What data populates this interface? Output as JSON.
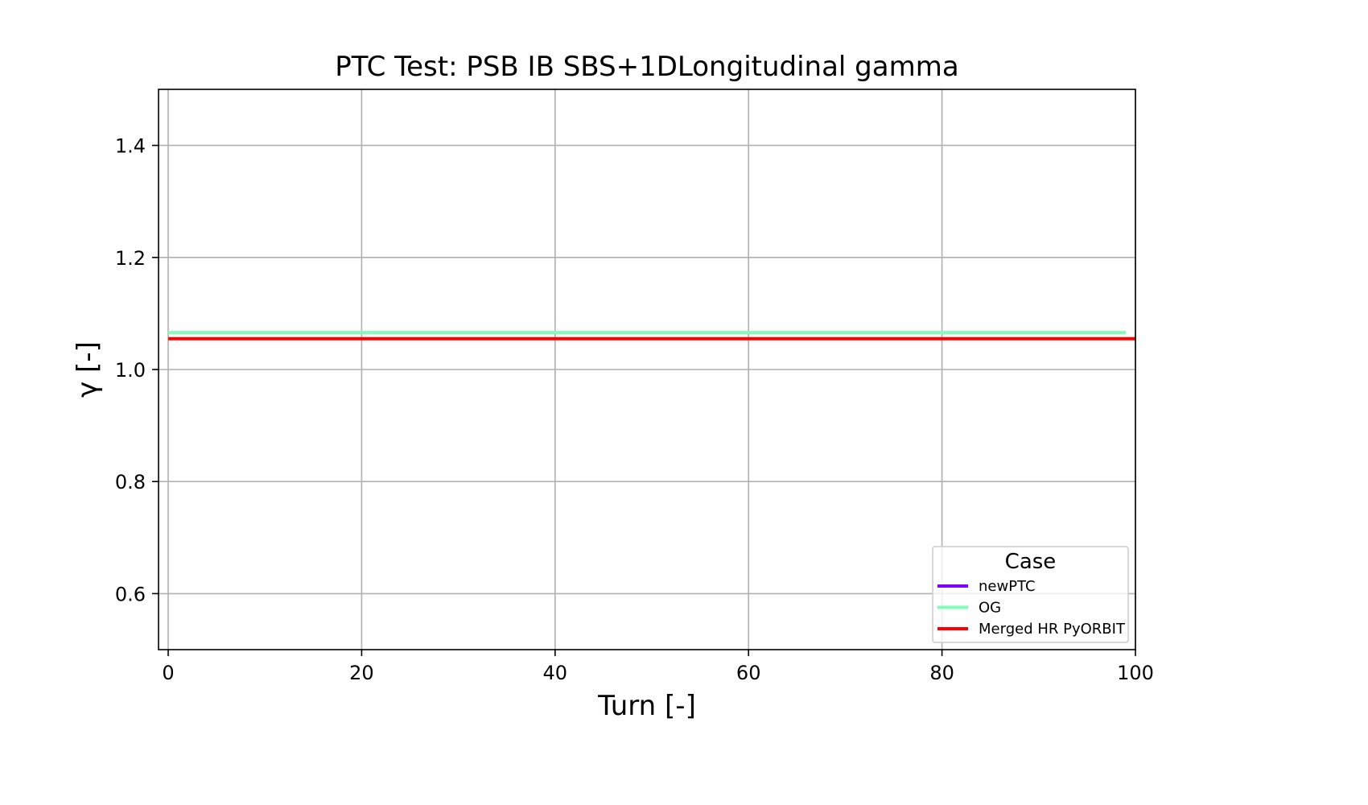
{
  "chart_data": {
    "type": "line",
    "title": "PTC Test: PSB IB SBS+1DLongitudinal gamma",
    "xlabel": "Turn [-]",
    "ylabel": "γ [-]",
    "xlim": [
      -1,
      100
    ],
    "ylim": [
      0.5,
      1.5
    ],
    "xticks": [
      0,
      20,
      40,
      60,
      80,
      100
    ],
    "yticks": [
      0.6,
      0.8,
      1.0,
      1.2,
      1.4
    ],
    "xtick_labels": [
      "0",
      "20",
      "40",
      "60",
      "80",
      "100"
    ],
    "ytick_labels": [
      "0.6",
      "0.8",
      "1.0",
      "1.2",
      "1.4"
    ],
    "grid": true,
    "legend": {
      "title": "Case",
      "position": "lower-right"
    },
    "series": [
      {
        "name": "newPTC",
        "color": "#8000ff",
        "x": [],
        "y": []
      },
      {
        "name": "OG",
        "color": "#80ffb4",
        "x": [
          0,
          99
        ],
        "y": [
          1.066,
          1.066
        ]
      },
      {
        "name": "Merged HR PyORBIT",
        "color": "#ff0000",
        "x": [
          0,
          100
        ],
        "y": [
          1.055,
          1.055
        ]
      }
    ]
  }
}
